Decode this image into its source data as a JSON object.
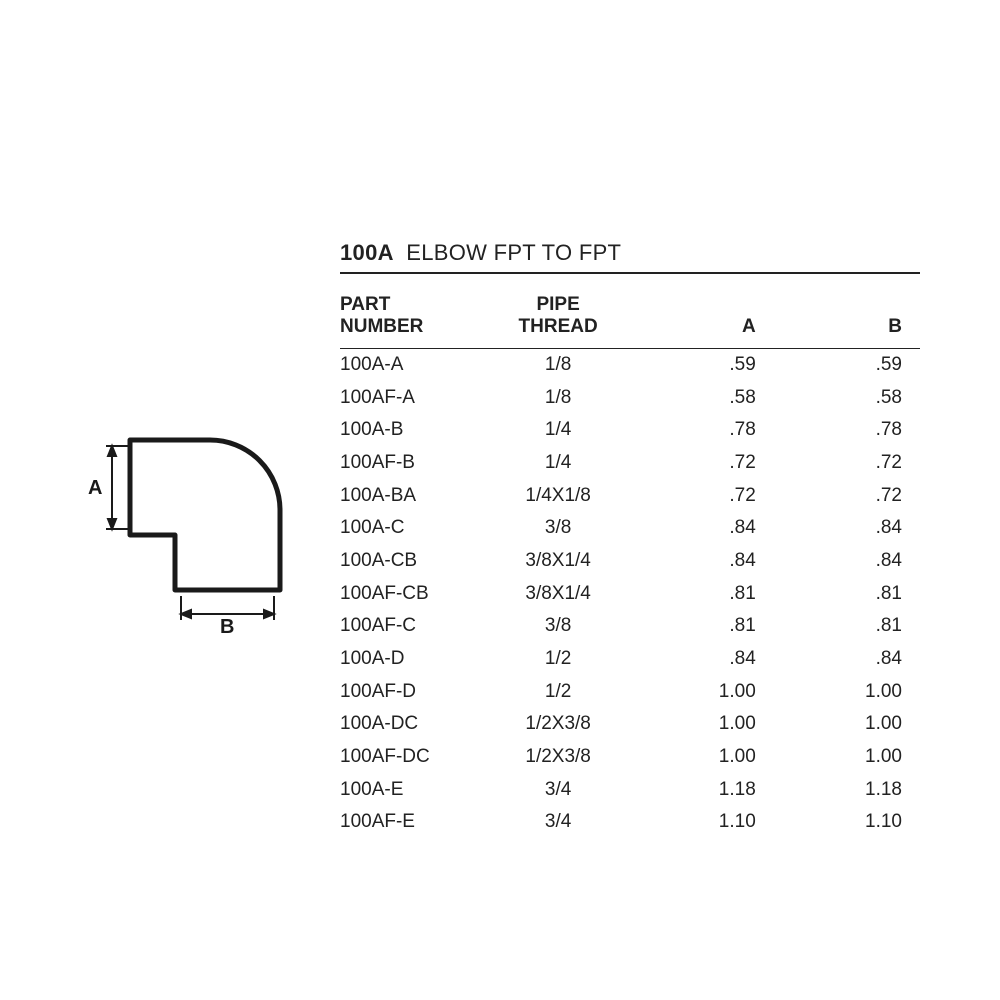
{
  "title": {
    "code": "100A",
    "desc": "ELBOW FPT TO FPT"
  },
  "table": {
    "columns": [
      {
        "label": "PART\nNUMBER",
        "class": "col-part",
        "align": "left"
      },
      {
        "label": "PIPE\nTHREAD",
        "class": "col-thread",
        "align": "center"
      },
      {
        "label": "A",
        "class": "col-a",
        "align": "right"
      },
      {
        "label": "B",
        "class": "col-b",
        "align": "right"
      }
    ],
    "rows": [
      [
        "100A-A",
        "1/8",
        ".59",
        ".59"
      ],
      [
        "100AF-A",
        "1/8",
        ".58",
        ".58"
      ],
      [
        "100A-B",
        "1/4",
        ".78",
        ".78"
      ],
      [
        "100AF-B",
        "1/4",
        ".72",
        ".72"
      ],
      [
        "100A-BA",
        "1/4X1/8",
        ".72",
        ".72"
      ],
      [
        "100A-C",
        "3/8",
        ".84",
        ".84"
      ],
      [
        "100A-CB",
        "3/8X1/4",
        ".84",
        ".84"
      ],
      [
        "100AF-CB",
        "3/8X1/4",
        ".81",
        ".81"
      ],
      [
        "100AF-C",
        "3/8",
        ".81",
        ".81"
      ],
      [
        "100A-D",
        "1/2",
        ".84",
        ".84"
      ],
      [
        "100AF-D",
        "1/2",
        "1.00",
        "1.00"
      ],
      [
        "100A-DC",
        "1/2X3/8",
        "1.00",
        "1.00"
      ],
      [
        "100AF-DC",
        "1/2X3/8",
        "1.00",
        "1.00"
      ],
      [
        "100A-E",
        "3/4",
        "1.18",
        "1.18"
      ],
      [
        "100AF-E",
        "3/4",
        "1.10",
        "1.10"
      ]
    ]
  },
  "diagram": {
    "label_a": "A",
    "label_b": "B",
    "stroke": "#1a1a1a",
    "stroke_width": 4
  }
}
